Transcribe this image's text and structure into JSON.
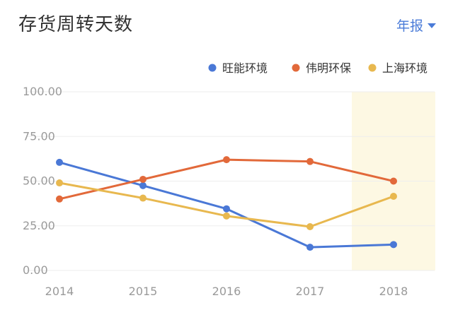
{
  "header": {
    "title": "存货周转天数",
    "period_label": "年报"
  },
  "colors": {
    "accent": "#4a7bd8",
    "highlight_band": "#fdf8e3"
  },
  "chart_data": {
    "type": "line",
    "title": "存货周转天数",
    "x": [
      "2014",
      "2015",
      "2016",
      "2017",
      "2018"
    ],
    "series": [
      {
        "name": "旺能环境",
        "color": "#4a78d6",
        "values": [
          60.5,
          47.5,
          34.5,
          13.0,
          14.5
        ]
      },
      {
        "name": "伟明环保",
        "color": "#e2693a",
        "values": [
          40.0,
          51.0,
          62.0,
          61.0,
          50.0
        ]
      },
      {
        "name": "上海环境",
        "color": "#e8b84f",
        "values": [
          49.0,
          40.5,
          30.5,
          24.5,
          41.5
        ]
      }
    ],
    "ylim": [
      0,
      100
    ],
    "yticks": [
      "0.00",
      "25.00",
      "50.00",
      "75.00",
      "100.00"
    ],
    "highlighted_category": "2018",
    "grid": true,
    "legend_position": "top-right"
  }
}
